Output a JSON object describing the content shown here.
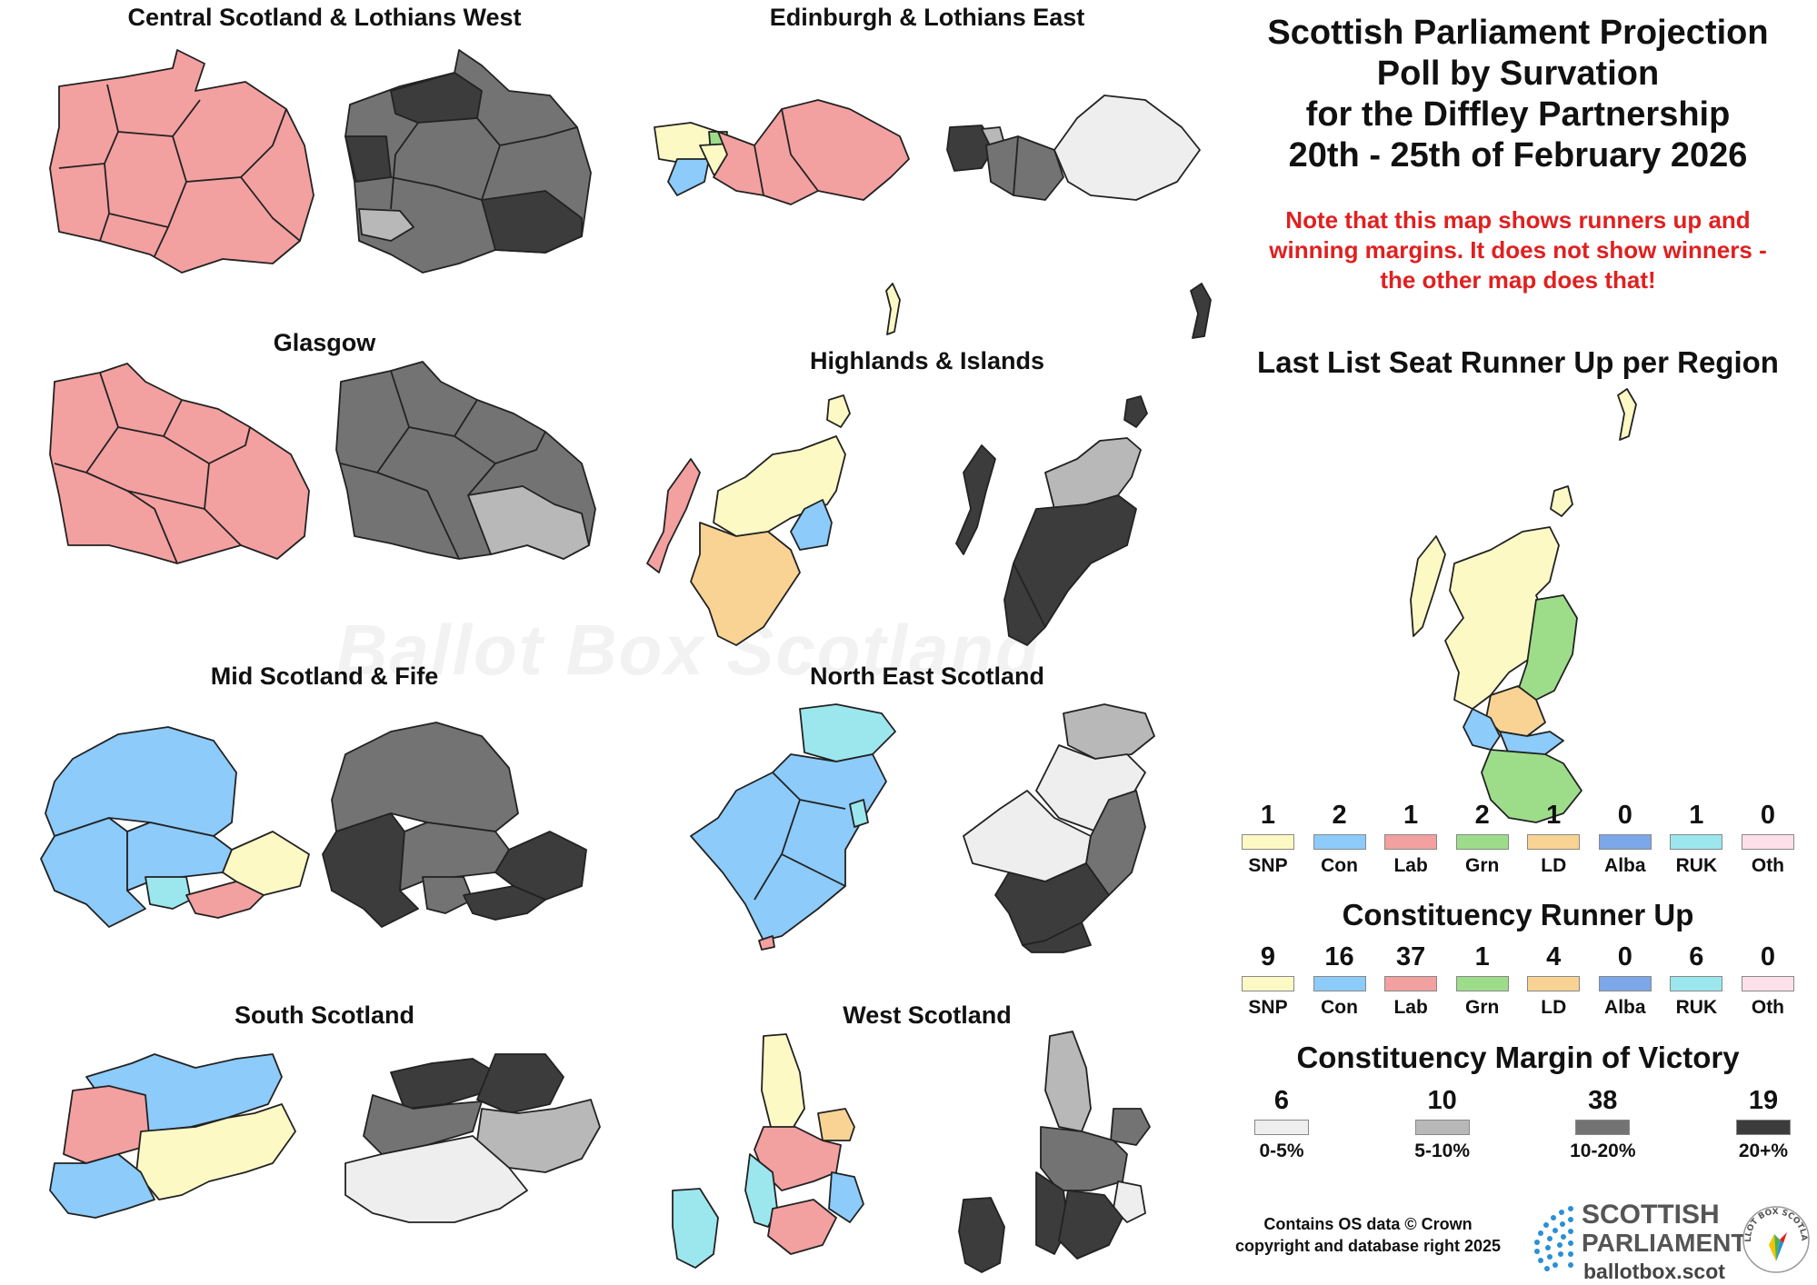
{
  "title_lines": [
    "Scottish Parliament Projection",
    "Poll by Survation",
    "for the Diffley Partnership",
    "20th - 25th of February 2026"
  ],
  "note_lines": [
    "Note that this map shows runners up and",
    "winning margins. It does not show winners -",
    "the other map does that!"
  ],
  "regions": [
    {
      "name": "Central Scotland & Lothians West"
    },
    {
      "name": "Edinburgh & Lothians East"
    },
    {
      "name": "Glasgow"
    },
    {
      "name": "Highlands & Islands"
    },
    {
      "name": "Mid Scotland & Fife"
    },
    {
      "name": "North East Scotland"
    },
    {
      "name": "South Scotland"
    },
    {
      "name": "West Scotland"
    }
  ],
  "watermark": "Ballot Box Scotland",
  "colors": {
    "SNP": "#fdf9c4",
    "Con": "#8ccbfa",
    "Lab": "#f3a0a0",
    "Grn": "#9ddd8a",
    "LD": "#f8d394",
    "Alba": "#7ca7e8",
    "RUK": "#9ce7ee",
    "Oth": "#fde0ea",
    "m0": "#eeeeee",
    "m5": "#b8b8b8",
    "m10": "#737373",
    "m20": "#3c3c3c"
  },
  "list_runner_up": {
    "title": "Last List Seat Runner Up per Region",
    "parties": [
      {
        "label": "SNP",
        "count": "1",
        "color": "#fdf9c4"
      },
      {
        "label": "Con",
        "count": "2",
        "color": "#8ccbfa"
      },
      {
        "label": "Lab",
        "count": "1",
        "color": "#f3a0a0"
      },
      {
        "label": "Grn",
        "count": "2",
        "color": "#9ddd8a"
      },
      {
        "label": "LD",
        "count": "1",
        "color": "#f8d394"
      },
      {
        "label": "Alba",
        "count": "0",
        "color": "#7ca7e8"
      },
      {
        "label": "RUK",
        "count": "1",
        "color": "#9ce7ee"
      },
      {
        "label": "Oth",
        "count": "0",
        "color": "#fde0ea"
      }
    ]
  },
  "constituency_runner_up": {
    "title": "Constituency Runner Up",
    "parties": [
      {
        "label": "SNP",
        "count": "9",
        "color": "#fdf9c4"
      },
      {
        "label": "Con",
        "count": "16",
        "color": "#8ccbfa"
      },
      {
        "label": "Lab",
        "count": "37",
        "color": "#f3a0a0"
      },
      {
        "label": "Grn",
        "count": "1",
        "color": "#9ddd8a"
      },
      {
        "label": "LD",
        "count": "4",
        "color": "#f8d394"
      },
      {
        "label": "Alba",
        "count": "0",
        "color": "#7ca7e8"
      },
      {
        "label": "RUK",
        "count": "6",
        "color": "#9ce7ee"
      },
      {
        "label": "Oth",
        "count": "0",
        "color": "#fde0ea"
      }
    ]
  },
  "margin_of_victory": {
    "title": "Constituency Margin of Victory",
    "bands": [
      {
        "label": "0-5%",
        "count": "6",
        "color": "#eeeeee"
      },
      {
        "label": "5-10%",
        "count": "10",
        "color": "#b8b8b8"
      },
      {
        "label": "10-20%",
        "count": "38",
        "color": "#737373"
      },
      {
        "label": "20+%",
        "count": "19",
        "color": "#3c3c3c"
      }
    ]
  },
  "credit_lines": [
    "Contains OS data © Crown",
    "copyright and database right 2025"
  ],
  "logo": {
    "line1": "SCOTTISH",
    "line2": "PARLIAMENT",
    "url": "ballotbox.scot",
    "badge": "BALLOT BOX SCOTLAND"
  }
}
